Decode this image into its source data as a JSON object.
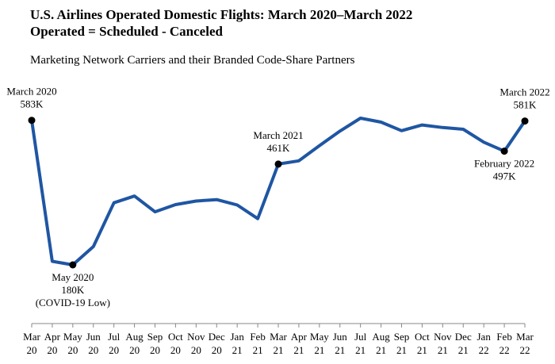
{
  "chart_data": {
    "type": "line",
    "title": "U.S. Airlines Operated Domestic Flights: March 2020–March 2022",
    "title_line2": "Operated = Scheduled - Canceled",
    "subtitle": "Marketing Network Carriers and their Branded Code-Share Partners",
    "xlabel": "",
    "ylabel": "",
    "grid": false,
    "legend": "none",
    "x": [
      [
        "Mar",
        "20"
      ],
      [
        "Apr",
        "20"
      ],
      [
        "May",
        "20"
      ],
      [
        "Jun",
        "20"
      ],
      [
        "Jul",
        "20"
      ],
      [
        "Aug",
        "20"
      ],
      [
        "Sep",
        "20"
      ],
      [
        "Oct",
        "20"
      ],
      [
        "Nov",
        "20"
      ],
      [
        "Dec",
        "20"
      ],
      [
        "Jan",
        "21"
      ],
      [
        "Feb",
        "21"
      ],
      [
        "Mar",
        "21"
      ],
      [
        "Apr",
        "21"
      ],
      [
        "May",
        "21"
      ],
      [
        "Jun",
        "21"
      ],
      [
        "Jul",
        "21"
      ],
      [
        "Aug",
        "21"
      ],
      [
        "Sep",
        "21"
      ],
      [
        "Oct",
        "21"
      ],
      [
        "Nov",
        "21"
      ],
      [
        "Dec",
        "21"
      ],
      [
        "Jan",
        "22"
      ],
      [
        "Feb",
        "22"
      ],
      [
        "Mar",
        "22"
      ]
    ],
    "ylim": [
      0,
      650
    ],
    "series": [
      {
        "color": "#1f56a3",
        "values": [
          583,
          190,
          180,
          231,
          353,
          372,
          328,
          348,
          358,
          362,
          347,
          309,
          461,
          470,
          512,
          553,
          589,
          578,
          554,
          570,
          563,
          558,
          522,
          497,
          581
        ]
      }
    ],
    "annotations": [
      {
        "index": 0,
        "lines": [
          "March 2020",
          "583K"
        ],
        "position": "above"
      },
      {
        "index": 2,
        "lines": [
          "May 2020",
          "180K",
          "(COVID-19 Low)"
        ],
        "position": "below"
      },
      {
        "index": 12,
        "lines": [
          "March 2021",
          "461K"
        ],
        "position": "above"
      },
      {
        "index": 23,
        "lines": [
          "February 2022",
          "497K"
        ],
        "position": "below"
      },
      {
        "index": 24,
        "lines": [
          "March 2022",
          "581K"
        ],
        "position": "above"
      }
    ]
  }
}
